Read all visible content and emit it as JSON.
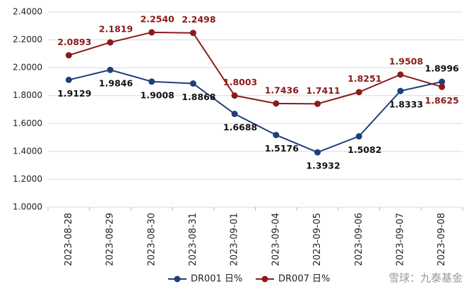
{
  "chart_data": {
    "type": "line",
    "categories": [
      "2023-08-28",
      "2023-08-29",
      "2023-08-30",
      "2023-08-31",
      "2023-09-01",
      "2023-09-04",
      "2023-09-05",
      "2023-09-06",
      "2023-09-07",
      "2023-09-08"
    ],
    "series": [
      {
        "name": "DR001 日%",
        "color": "#1f3f7a",
        "values": [
          1.9129,
          1.9846,
          1.9008,
          1.8868,
          1.6688,
          1.5176,
          1.3932,
          1.5082,
          1.8333,
          1.8996
        ],
        "value_labels": [
          "1.9129",
          "1.9846",
          "1.9008",
          "1.8868",
          "1.6688",
          "1.5176",
          "1.3932",
          "1.5082",
          "1.8333",
          "1.8996"
        ]
      },
      {
        "name": "DR007 日%",
        "color": "#8b1a1a",
        "values": [
          2.0893,
          2.1819,
          2.254,
          2.2498,
          1.8003,
          1.7436,
          1.7411,
          1.8251,
          1.9508,
          1.8625
        ],
        "value_labels": [
          "2.0893",
          "2.1819",
          "2.2540",
          "2.2498",
          "1.8003",
          "1.7436",
          "1.7411",
          "1.8251",
          "1.9508",
          "1.8625"
        ]
      }
    ],
    "ylim": [
      1,
      2.4
    ],
    "yticks": [
      {
        "value": 1,
        "label": "1.0000"
      },
      {
        "value": 1.2,
        "label": "1.2000"
      },
      {
        "value": 1.4,
        "label": "1.4000"
      },
      {
        "value": 1.6,
        "label": "1.6000"
      },
      {
        "value": 1.8,
        "label": "1.8000"
      },
      {
        "value": 2,
        "label": "2.0000"
      },
      {
        "value": 2.2,
        "label": "2.2000"
      },
      {
        "value": 2.4,
        "label": "2.4000"
      }
    ],
    "grid": true,
    "annotation": "雪球：九泰基金"
  }
}
